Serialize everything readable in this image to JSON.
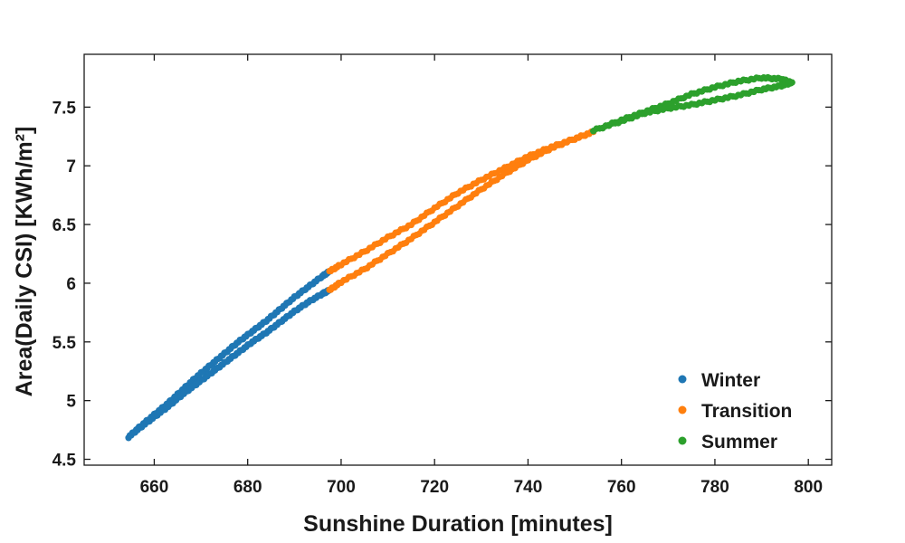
{
  "chart_data": {
    "type": "scatter",
    "title": "",
    "xlabel": "Sunshine Duration [minutes]",
    "ylabel": "Area(Daily CSI) [KWh/m²]",
    "xlim": [
      645,
      805
    ],
    "ylim": [
      4.45,
      7.95
    ],
    "xticks": [
      660,
      680,
      700,
      720,
      740,
      760,
      780,
      800
    ],
    "yticks": [
      4.5,
      5,
      5.5,
      6,
      6.5,
      7,
      7.5
    ],
    "ytick_labels": [
      "4.5",
      "5",
      "5.5",
      "6",
      "6.5",
      "7",
      "7.5"
    ],
    "grid": false,
    "legend_position": "bottom-right",
    "marker_size": 3.6,
    "series": [
      {
        "name": "Winter",
        "color": "#1f77b4",
        "branches": [
          {
            "x": [
              654.5,
              657,
              660,
              663,
              666,
              669,
              672,
              675,
              678,
              681,
              684,
              687,
              690,
              693,
              696,
              697.5
            ],
            "y": [
              4.69,
              4.78,
              4.88,
              4.98,
              5.09,
              5.2,
              5.3,
              5.4,
              5.5,
              5.59,
              5.68,
              5.78,
              5.88,
              5.97,
              6.06,
              6.1
            ]
          },
          {
            "x": [
              654.5,
              657,
              660,
              663,
              666,
              669,
              672,
              675,
              678,
              681,
              684,
              687,
              690,
              693,
              696,
              697.5
            ],
            "y": [
              4.69,
              4.77,
              4.86,
              4.95,
              5.05,
              5.14,
              5.23,
              5.32,
              5.41,
              5.5,
              5.58,
              5.67,
              5.76,
              5.84,
              5.91,
              5.94
            ]
          }
        ]
      },
      {
        "name": "Transition",
        "color": "#ff7f0e",
        "branches": [
          {
            "x": [
              697.5,
              700,
              705,
              710,
              715,
              720,
              725,
              730,
              735,
              740,
              745,
              750,
              754
            ],
            "y": [
              6.1,
              6.16,
              6.27,
              6.39,
              6.5,
              6.64,
              6.77,
              6.88,
              6.98,
              7.08,
              7.16,
              7.23,
              7.29
            ]
          },
          {
            "x": [
              697.5,
              700,
              705,
              710,
              715,
              720,
              725,
              730,
              735,
              740,
              745,
              750,
              754
            ],
            "y": [
              5.94,
              6.01,
              6.12,
              6.25,
              6.38,
              6.52,
              6.66,
              6.8,
              6.93,
              7.05,
              7.15,
              7.23,
              7.29
            ]
          }
        ]
      },
      {
        "name": "Summer",
        "color": "#2ca02c",
        "branches": [
          {
            "x": [
              754,
              760,
              765,
              770,
              775,
              780,
              785,
              790,
              794,
              796.5
            ],
            "y": [
              7.3,
              7.39,
              7.46,
              7.53,
              7.61,
              7.67,
              7.72,
              7.75,
              7.74,
              7.71
            ]
          },
          {
            "x": [
              754,
              760,
              765,
              770,
              775,
              780,
              785,
              790,
              794,
              796.5
            ],
            "y": [
              7.3,
              7.38,
              7.45,
              7.49,
              7.52,
              7.56,
              7.6,
              7.65,
              7.68,
              7.71
            ]
          }
        ]
      }
    ]
  }
}
